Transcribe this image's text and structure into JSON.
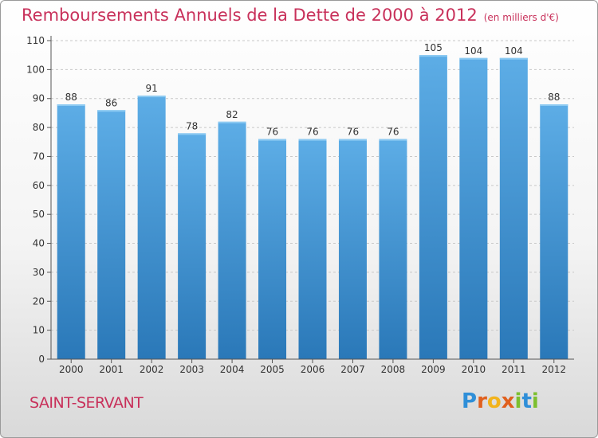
{
  "header": {
    "title": "Remboursements Annuels de la Dette de 2000 à 2012",
    "subtitle": "(en milliers d'€)"
  },
  "footer": {
    "commune": "SAINT-SERVANT",
    "logo_text": "Proxiti"
  },
  "colors": {
    "accent": "#c8305a",
    "bar_top": "#5dade6",
    "bar_bottom": "#2a78b8"
  },
  "chart_data": {
    "type": "bar",
    "title": "Remboursements Annuels de la Dette de 2000 à 2012",
    "subtitle": "(en milliers d'€)",
    "categories": [
      "2000",
      "2001",
      "2002",
      "2003",
      "2004",
      "2005",
      "2006",
      "2007",
      "2008",
      "2009",
      "2010",
      "2011",
      "2012"
    ],
    "values": [
      88,
      86,
      91,
      78,
      82,
      76,
      76,
      76,
      76,
      105,
      104,
      104,
      88
    ],
    "ylim": [
      0,
      110
    ],
    "yticks": [
      0,
      10,
      20,
      30,
      40,
      50,
      60,
      70,
      80,
      90,
      100,
      110
    ],
    "grid": true,
    "data_labels": true
  }
}
